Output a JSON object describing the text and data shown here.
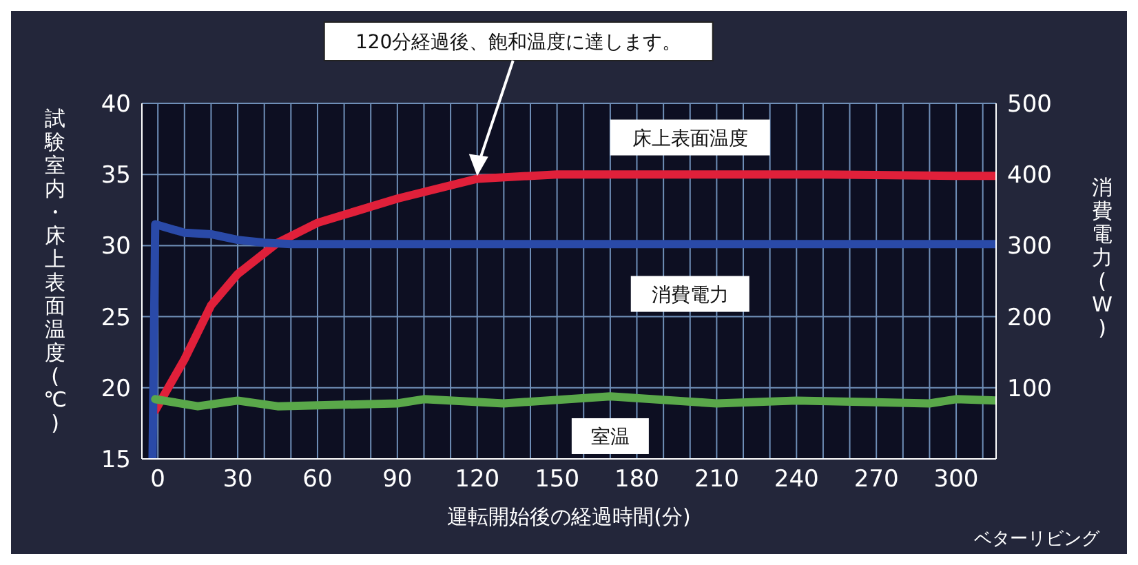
{
  "chart_data": {
    "type": "line",
    "xlabel": "運転開始後の経過時間(分)",
    "ylabel": "試験室内・床上表面温度(℃)",
    "y2label": "消費電力(W)",
    "xlim": [
      -6,
      315
    ],
    "xticks": [
      0,
      {
        "value": 10,
        "label": null
      },
      {
        "value": 20,
        "label": null
      },
      30,
      {
        "value": 40,
        "label": null
      },
      {
        "value": 50,
        "label": null
      },
      60,
      {
        "value": 70,
        "label": null
      },
      {
        "value": 80,
        "label": null
      },
      90,
      {
        "value": 100,
        "label": null
      },
      {
        "value": 110,
        "label": null
      },
      120,
      {
        "value": 130,
        "label": null
      },
      {
        "value": 140,
        "label": null
      },
      150,
      {
        "value": 160,
        "label": null
      },
      {
        "value": 170,
        "label": null
      },
      180,
      {
        "value": 190,
        "label": null
      },
      {
        "value": 200,
        "label": null
      },
      210,
      {
        "value": 220,
        "label": null
      },
      {
        "value": 230,
        "label": null
      },
      240,
      {
        "value": 250,
        "label": null
      },
      {
        "value": 260,
        "label": null
      },
      270,
      {
        "value": 280,
        "label": null
      },
      {
        "value": 290,
        "label": null
      },
      300,
      {
        "value": 310,
        "label": null
      }
    ],
    "ylim": [
      15,
      40
    ],
    "yticks": [
      15,
      20,
      25,
      30,
      35,
      40
    ],
    "y2lim": [
      0,
      500
    ],
    "y2ticks": [
      100,
      200,
      300,
      400,
      500
    ],
    "grid": true,
    "marker": "none",
    "line_style": "solid",
    "series": [
      {
        "name": "床上表面温度",
        "color": "#e0203a",
        "x": [
          -1,
          10,
          20,
          30,
          45,
          60,
          90,
          120,
          150,
          200,
          250,
          300,
          315
        ],
        "values": [
          18.4,
          22,
          25.8,
          28,
          30.2,
          31.6,
          33.3,
          34.7,
          35,
          35,
          35,
          34.9,
          34.9
        ]
      },
      {
        "name": "消費電力",
        "color": "#2a4aa8",
        "axis": "y2",
        "x": [
          -2,
          -1,
          10,
          20,
          30,
          40,
          50,
          100,
          200,
          315
        ],
        "values": [
          0,
          330,
          318,
          316,
          308,
          304,
          302,
          302,
          302,
          302
        ]
      },
      {
        "name": "室温",
        "color": "#5aa84a",
        "x": [
          -1,
          15,
          30,
          45,
          90,
          100,
          130,
          170,
          210,
          240,
          290,
          300,
          315
        ],
        "values": [
          19.2,
          18.7,
          19.1,
          18.7,
          18.9,
          19.2,
          18.9,
          19.4,
          18.9,
          19.1,
          18.9,
          19.2,
          19.1
        ]
      }
    ],
    "annotations": [
      "120分経過後、飽和温度に達します。",
      "ベターリビング"
    ]
  }
}
